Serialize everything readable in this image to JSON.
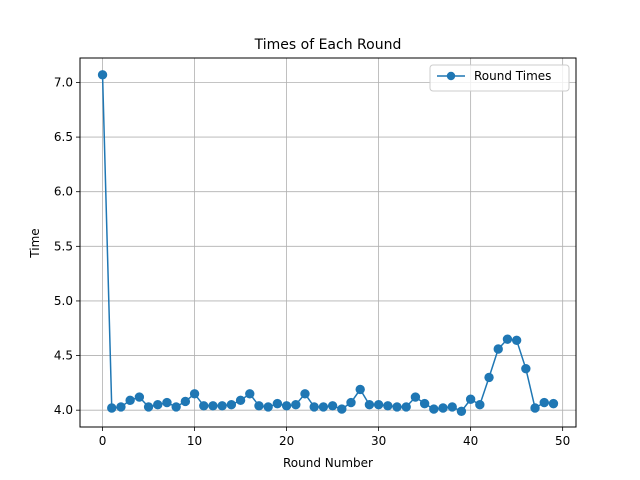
{
  "chart_data": {
    "type": "line",
    "title": "Times of Each Round",
    "xlabel": "Round Number",
    "ylabel": "Time",
    "xlim": [
      -2.45,
      51.45
    ],
    "ylim": [
      3.846,
      7.224
    ],
    "xticks": [
      0,
      10,
      20,
      30,
      40,
      50
    ],
    "yticks": [
      4.0,
      4.5,
      5.0,
      5.5,
      6.0,
      6.5,
      7.0
    ],
    "grid": true,
    "legend_position": "top-right",
    "series": [
      {
        "name": "Round Times",
        "color": "#1f77b4",
        "marker": "circle",
        "x": [
          0,
          1,
          2,
          3,
          4,
          5,
          6,
          7,
          8,
          9,
          10,
          11,
          12,
          13,
          14,
          15,
          16,
          17,
          18,
          19,
          20,
          21,
          22,
          23,
          24,
          25,
          26,
          27,
          28,
          29,
          30,
          31,
          32,
          33,
          34,
          35,
          36,
          37,
          38,
          39,
          40,
          41,
          42,
          43,
          44,
          45,
          46,
          47,
          48,
          49
        ],
        "y": [
          7.07,
          4.02,
          4.03,
          4.09,
          4.12,
          4.03,
          4.05,
          4.07,
          4.03,
          4.08,
          4.15,
          4.04,
          4.04,
          4.04,
          4.05,
          4.09,
          4.15,
          4.04,
          4.03,
          4.06,
          4.04,
          4.05,
          4.15,
          4.03,
          4.03,
          4.04,
          4.01,
          4.07,
          4.19,
          4.05,
          4.05,
          4.04,
          4.03,
          4.03,
          4.12,
          4.06,
          4.01,
          4.02,
          4.03,
          3.99,
          4.1,
          4.05,
          4.3,
          4.56,
          4.65,
          4.64,
          4.38,
          4.02,
          4.07,
          4.06
        ]
      }
    ]
  }
}
